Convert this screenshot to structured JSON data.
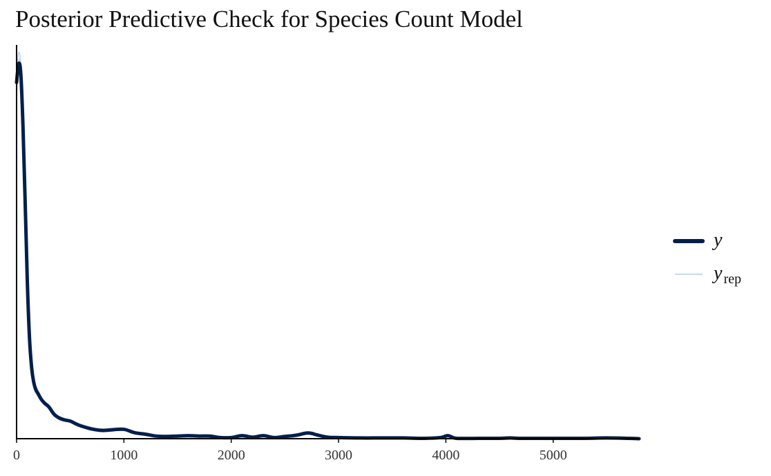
{
  "title": "Posterior Predictive Check for Species Count Model",
  "colors": {
    "y": "#011f4b",
    "yrep": "#b3cde0",
    "axis": "#000000",
    "text": "#333333"
  },
  "chart_data": {
    "type": "line",
    "title": "Posterior Predictive Check for Species Count Model",
    "xlabel": "",
    "ylabel": "",
    "xlim": [
      0,
      5800
    ],
    "ylim": [
      0,
      1.05
    ],
    "y_axis_ticks_shown": false,
    "grid": false,
    "legend_position": "right",
    "x_ticks": [
      0,
      1000,
      2000,
      3000,
      4000,
      5000
    ],
    "x_tick_labels": [
      "0",
      "1000",
      "2000",
      "3000",
      "4000",
      "5000"
    ],
    "legend": [
      {
        "key": "y",
        "label": "y",
        "subscript": ""
      },
      {
        "key": "yrep",
        "label": "y",
        "subscript": "rep"
      }
    ],
    "series": [
      {
        "name": "y",
        "x": [
          0,
          20,
          40,
          60,
          80,
          100,
          120,
          140,
          160,
          180,
          200,
          230,
          260,
          300,
          350,
          400,
          450,
          500,
          550,
          600,
          700,
          800,
          900,
          1000,
          1100,
          1200,
          1300,
          1400,
          1500,
          1600,
          1700,
          1800,
          1900,
          2000,
          2100,
          2200,
          2300,
          2400,
          2500,
          2600,
          2700,
          2750,
          2800,
          2900,
          3000,
          3200,
          3400,
          3600,
          3800,
          3950,
          4020,
          4100,
          4300,
          4500,
          4600,
          4700,
          5000,
          5300,
          5500,
          5700,
          5800
        ],
        "y": [
          0.95,
          1.0,
          0.97,
          0.83,
          0.63,
          0.42,
          0.27,
          0.19,
          0.15,
          0.13,
          0.12,
          0.105,
          0.095,
          0.085,
          0.065,
          0.055,
          0.05,
          0.047,
          0.04,
          0.034,
          0.026,
          0.022,
          0.024,
          0.025,
          0.016,
          0.012,
          0.007,
          0.006,
          0.007,
          0.008,
          0.007,
          0.007,
          0.003,
          0.003,
          0.008,
          0.004,
          0.008,
          0.003,
          0.006,
          0.009,
          0.015,
          0.014,
          0.01,
          0.004,
          0.003,
          0.002,
          0.002,
          0.002,
          0.001,
          0.003,
          0.008,
          0.001,
          0.001,
          0.001,
          0.002,
          0.001,
          0.001,
          0.001,
          0.002,
          0.001,
          0.0
        ]
      }
    ],
    "replicates": [
      {
        "name": "yrep",
        "x": [
          0,
          20,
          40,
          60,
          80,
          100,
          120,
          140,
          160,
          180,
          200,
          230,
          260,
          300,
          350,
          400,
          450,
          500,
          550,
          600,
          700,
          800,
          900,
          1000,
          1100,
          1200,
          1300,
          1400,
          1500,
          1600,
          1700,
          1800,
          1900,
          2000,
          2100,
          2200,
          2300,
          2400,
          2500,
          2600,
          2700,
          2750,
          2800,
          2900,
          3000,
          3200,
          3400,
          3600,
          3800,
          3950,
          4020,
          4100,
          4300,
          4500,
          4600,
          4700,
          5000,
          5300,
          5500,
          5700,
          5800
        ],
        "y": [
          0.98,
          1.03,
          0.99,
          0.84,
          0.64,
          0.43,
          0.28,
          0.2,
          0.16,
          0.14,
          0.13,
          0.11,
          0.1,
          0.088,
          0.07,
          0.058,
          0.052,
          0.05,
          0.043,
          0.037,
          0.03,
          0.026,
          0.028,
          0.028,
          0.019,
          0.014,
          0.009,
          0.008,
          0.009,
          0.01,
          0.009,
          0.009,
          0.005,
          0.005,
          0.011,
          0.006,
          0.01,
          0.005,
          0.008,
          0.012,
          0.018,
          0.017,
          0.012,
          0.006,
          0.005,
          0.004,
          0.003,
          0.004,
          0.002,
          0.004,
          0.009,
          0.002,
          0.002,
          0.002,
          0.003,
          0.002,
          0.002,
          0.002,
          0.003,
          0.002,
          0.001
        ]
      },
      {
        "name": "yrep",
        "x": [
          0,
          20,
          40,
          60,
          80,
          100,
          120,
          140,
          160,
          180,
          200,
          230,
          260,
          300,
          350,
          400,
          450,
          500,
          550,
          600,
          700,
          800,
          900,
          1000,
          1100,
          1200,
          1300,
          1400,
          1500,
          1600,
          1700,
          1800,
          1900,
          2000,
          2100,
          2200,
          2300,
          2400,
          2500,
          2600,
          2700,
          2750,
          2800,
          2900,
          3000,
          3200,
          3400,
          3600,
          3800,
          3950,
          4020,
          4100,
          4300,
          4500,
          4600,
          4700,
          5000,
          5300,
          5500,
          5700,
          5800
        ],
        "y": [
          0.92,
          0.99,
          0.96,
          0.82,
          0.62,
          0.41,
          0.26,
          0.185,
          0.145,
          0.125,
          0.115,
          0.1,
          0.09,
          0.08,
          0.06,
          0.05,
          0.046,
          0.044,
          0.037,
          0.031,
          0.023,
          0.019,
          0.021,
          0.022,
          0.014,
          0.01,
          0.005,
          0.004,
          0.005,
          0.006,
          0.005,
          0.005,
          0.002,
          0.002,
          0.006,
          0.003,
          0.006,
          0.002,
          0.005,
          0.008,
          0.013,
          0.012,
          0.008,
          0.003,
          0.002,
          0.001,
          0.001,
          0.001,
          0.001,
          0.002,
          0.006,
          0.001,
          0.001,
          0.001,
          0.001,
          0.001,
          0.001,
          0.001,
          0.001,
          0.001,
          0.0
        ]
      },
      {
        "name": "yrep",
        "x": [
          0,
          20,
          40,
          60,
          80,
          100,
          120,
          140,
          160,
          180,
          200,
          230,
          260,
          300,
          350,
          400,
          450,
          500,
          550,
          600,
          700,
          800,
          900,
          1000,
          1100,
          1200,
          1300,
          1400,
          1500,
          1600,
          1700,
          1800,
          1900,
          2000,
          2100,
          2200,
          2300,
          2400,
          2500,
          2600,
          2700,
          2750,
          2800,
          2900,
          3000,
          3200,
          3400,
          3600,
          3800,
          3950,
          4020,
          4100,
          4300,
          4500,
          4600,
          4700,
          5000,
          5300,
          5500,
          5700,
          5800
        ],
        "y": [
          0.96,
          1.01,
          0.98,
          0.84,
          0.63,
          0.42,
          0.27,
          0.195,
          0.155,
          0.135,
          0.12,
          0.108,
          0.097,
          0.09,
          0.068,
          0.054,
          0.049,
          0.046,
          0.041,
          0.035,
          0.027,
          0.024,
          0.026,
          0.026,
          0.017,
          0.013,
          0.008,
          0.007,
          0.008,
          0.009,
          0.008,
          0.008,
          0.004,
          0.004,
          0.009,
          0.005,
          0.009,
          0.004,
          0.007,
          0.011,
          0.016,
          0.015,
          0.011,
          0.005,
          0.004,
          0.003,
          0.002,
          0.003,
          0.002,
          0.003,
          0.007,
          0.002,
          0.001,
          0.001,
          0.002,
          0.001,
          0.001,
          0.002,
          0.002,
          0.001,
          0.0
        ]
      }
    ]
  }
}
